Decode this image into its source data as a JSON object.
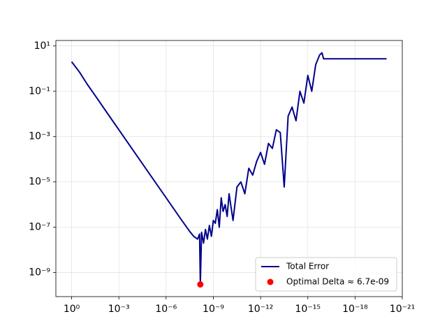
{
  "chart_data": {
    "type": "line",
    "xscale": "log",
    "yscale": "log",
    "grid": true,
    "legend": "lower right",
    "xlim": [
      10,
      1e-21
    ],
    "xticks": [
      {
        "value": 1,
        "label": "10⁰"
      },
      {
        "value": 0.001,
        "label": "10⁻³"
      },
      {
        "value": 1e-06,
        "label": "10⁻⁶"
      },
      {
        "value": 1e-09,
        "label": "10⁻⁹"
      },
      {
        "value": 1e-12,
        "label": "10⁻¹²"
      },
      {
        "value": 1e-15,
        "label": "10⁻¹⁵"
      },
      {
        "value": 1e-18,
        "label": "10⁻¹⁸"
      },
      {
        "value": 1e-21,
        "label": "10⁻²¹"
      }
    ],
    "ylim": [
      8.7e-11,
      17.4
    ],
    "yticks": [
      {
        "value": 10,
        "label": "10¹"
      },
      {
        "value": 0.1,
        "label": "10⁻¹"
      },
      {
        "value": 0.001,
        "label": "10⁻³"
      },
      {
        "value": 1e-05,
        "label": "10⁻⁵"
      },
      {
        "value": 1e-07,
        "label": "10⁻⁷"
      },
      {
        "value": 1e-09,
        "label": "10⁻⁹"
      }
    ],
    "series": [
      {
        "name": "Total Error",
        "color": "#00008b",
        "type": "line",
        "x": [
          1,
          0.316,
          0.1,
          0.0316,
          0.01,
          0.00316,
          0.001,
          0.000316,
          0.0001,
          3.16e-05,
          1e-05,
          3.16e-06,
          1e-06,
          3.16e-07,
          1e-07,
          3.16e-08,
          1.78e-08,
          1e-08,
          7.5e-09,
          6.7e-09,
          5.6e-09,
          4.2e-09,
          3.16e-09,
          2.4e-09,
          1.78e-09,
          1.33e-09,
          1e-09,
          7.5e-10,
          5.6e-10,
          4.2e-10,
          3.16e-10,
          2.4e-10,
          1.78e-10,
          1.33e-10,
          1e-10,
          5.62e-11,
          3.16e-11,
          1.78e-11,
          1e-11,
          5.62e-12,
          3.16e-12,
          1.78e-12,
          1e-12,
          5.62e-13,
          3.16e-13,
          1.78e-13,
          1e-13,
          5.62e-14,
          3.16e-14,
          1.78e-14,
          1e-14,
          5.62e-15,
          3.16e-15,
          1.78e-15,
          1e-15,
          5.62e-16,
          3.16e-16,
          1.78e-16,
          1.26e-16,
          1e-16,
          1e-20
        ],
        "values": [
          2,
          0.7,
          0.2,
          0.064,
          0.02,
          0.0063,
          0.002,
          0.00063,
          0.0002,
          6.3e-05,
          2e-05,
          6.3e-06,
          2e-06,
          6.3e-07,
          2e-07,
          6.5e-08,
          4e-08,
          3e-08,
          5e-08,
          3e-10,
          6e-08,
          2e-08,
          8e-08,
          3e-08,
          1.2e-07,
          4e-08,
          2e-07,
          1.5e-07,
          6e-07,
          1e-07,
          2e-06,
          5e-07,
          1e-06,
          3e-07,
          3e-06,
          2e-07,
          6e-06,
          1e-05,
          3e-06,
          4e-05,
          2e-05,
          8e-05,
          0.0002,
          6e-05,
          0.0005,
          0.0003,
          0.002,
          0.0015,
          6e-06,
          0.008,
          0.02,
          0.005,
          0.1,
          0.03,
          0.5,
          0.1,
          1.5,
          4,
          5,
          2.7,
          2.7
        ]
      },
      {
        "name": "Optimal Delta ≈ 6.7e-09",
        "color": "#ff0000",
        "type": "scatter",
        "x": [
          6.7e-09
        ],
        "values": [
          3e-10
        ]
      }
    ]
  }
}
